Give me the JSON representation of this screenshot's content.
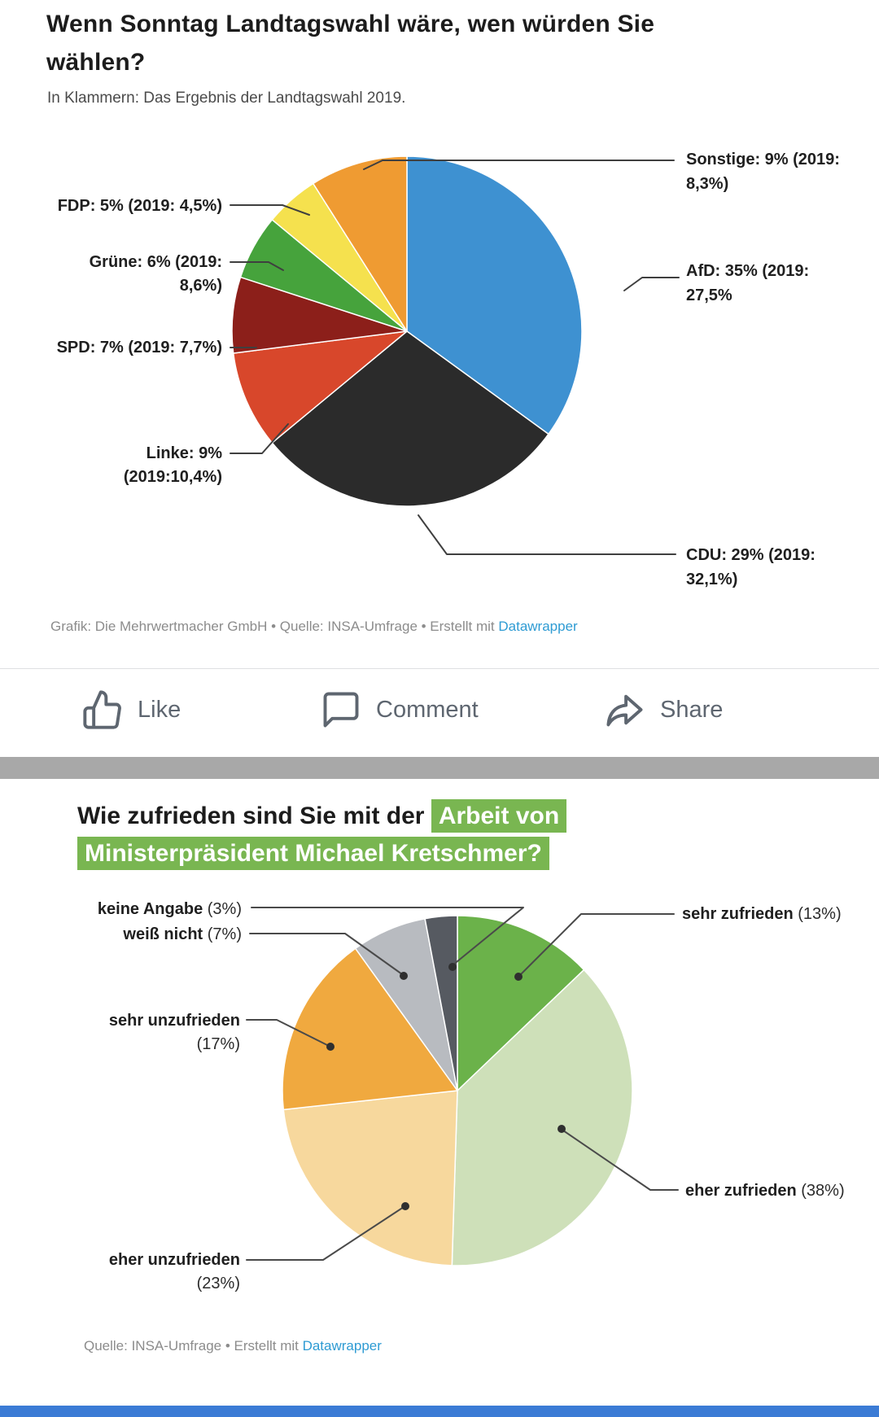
{
  "post1": {
    "title_lines": [
      "Wenn Sonntag Landtagswahl wäre, wen würden Sie",
      "wählen?"
    ],
    "subtitle": "In Klammern: Das Ergebnis der Landtagswahl 2019.",
    "callouts": {
      "fdp": {
        "l1": "FDP: 5% (2019: 4,5%)"
      },
      "gruene": {
        "l1": "Grüne: 6% (2019:",
        "l2": "8,6%)"
      },
      "spd": {
        "l1": "SPD: 7% (2019: 7,7%)"
      },
      "linke": {
        "l1": "Linke: 9%",
        "l2": "(2019:10,4%)"
      },
      "sonstige": {
        "l1": "Sonstige: 9% (2019:",
        "l2": "8,3%)"
      },
      "afd": {
        "l1": "AfD: 35% (2019:",
        "l2": "27,5%"
      },
      "cdu": {
        "l1": "CDU: 29% (2019:",
        "l2": "32,1%)"
      }
    },
    "footer": {
      "text": "Grafik: Die Mehrwertmacher GmbH • Quelle: INSA-Umfrage • Erstellt mit ",
      "link": "Datawrapper"
    }
  },
  "actions": {
    "like": "Like",
    "comment": "Comment",
    "share": "Share"
  },
  "post2": {
    "title_plain": "Wie zufrieden sind Sie mit der ",
    "title_highlight_line1": "Arbeit von",
    "title_highlight_line2": "Ministerpräsident Michael Kretschmer?",
    "highlight_color": "#79B651",
    "callouts": {
      "keine_angabe": {
        "name": "keine Angabe",
        "pct": " (3%)"
      },
      "weiss_nicht": {
        "name": "weiß nicht",
        "pct": " (7%)"
      },
      "sehr_unzufrieden": {
        "name": "sehr unzufrieden",
        "pct": "(17%)"
      },
      "eher_unzufrieden": {
        "name": "eher unzufrieden",
        "pct": "(23%)"
      },
      "sehr_zufrieden": {
        "name": "sehr zufrieden",
        "pct": " (13%)"
      },
      "eher_zufrieden": {
        "name": "eher zufrieden",
        "pct": " (38%)"
      }
    },
    "footer": {
      "text": "Quelle: INSA-Umfrage • Erstellt mit ",
      "link": "Datawrapper"
    }
  },
  "link_color": "#2E9BD3",
  "chart_data": [
    {
      "type": "pie",
      "title": "Wenn Sonntag Landtagswahl wäre, wen würden Sie wählen?",
      "subtitle": "In Klammern: Das Ergebnis der Landtagswahl 2019.",
      "start_angle_deg": 0,
      "direction": "clockwise",
      "slices": [
        {
          "label": "AfD",
          "value_pct": 35,
          "result_2019_pct": 27.5,
          "color": "#3E91D1"
        },
        {
          "label": "CDU",
          "value_pct": 29,
          "result_2019_pct": 32.1,
          "color": "#2B2B2B"
        },
        {
          "label": "Linke",
          "value_pct": 9,
          "result_2019_pct": 10.4,
          "color": "#D8472B"
        },
        {
          "label": "SPD",
          "value_pct": 7,
          "result_2019_pct": 7.7,
          "color": "#8C1F1A"
        },
        {
          "label": "Grüne",
          "value_pct": 6,
          "result_2019_pct": 8.6,
          "color": "#46A33C"
        },
        {
          "label": "FDP",
          "value_pct": 5,
          "result_2019_pct": 4.5,
          "color": "#F5E14E"
        },
        {
          "label": "Sonstige",
          "value_pct": 9,
          "result_2019_pct": 8.3,
          "color": "#EF9B32"
        }
      ]
    },
    {
      "type": "pie",
      "title": "Wie zufrieden sind Sie mit der Arbeit von Ministerpräsident Michael Kretschmer?",
      "start_angle_deg": 0,
      "direction": "clockwise",
      "slices": [
        {
          "label": "sehr zufrieden",
          "value_pct": 13,
          "color": "#6BB24A"
        },
        {
          "label": "eher zufrieden",
          "value_pct": 38,
          "color": "#CEE0B9"
        },
        {
          "label": "eher unzufrieden",
          "value_pct": 23,
          "color": "#F7D89D"
        },
        {
          "label": "sehr unzufrieden",
          "value_pct": 17,
          "color": "#F0A93F"
        },
        {
          "label": "weiß nicht",
          "value_pct": 7,
          "color": "#B8BBC0"
        },
        {
          "label": "keine Angabe",
          "value_pct": 3,
          "color": "#565A61"
        }
      ]
    }
  ]
}
